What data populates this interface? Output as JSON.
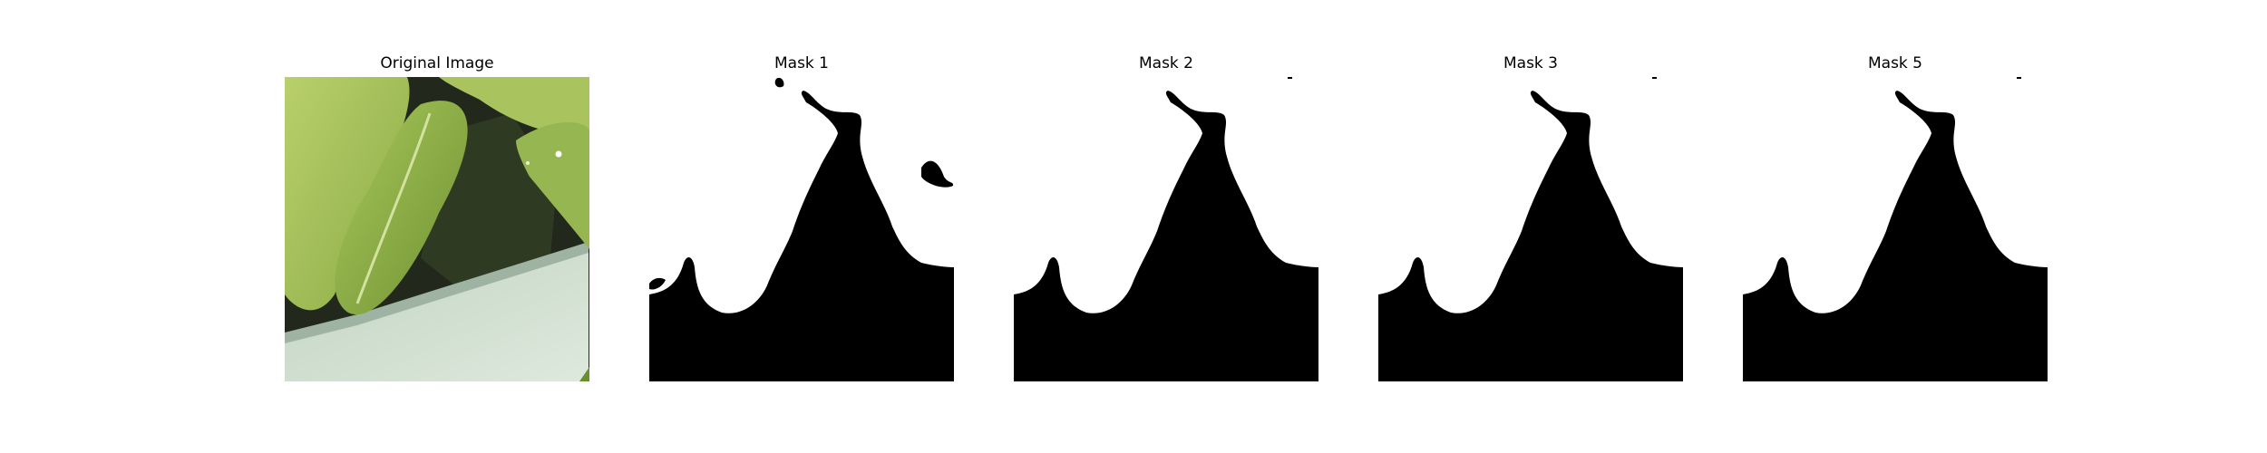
{
  "figure": {
    "panels": [
      {
        "key": "original",
        "title": "Original Image",
        "kind": "photo"
      },
      {
        "key": "mask_1",
        "title": "Mask 1",
        "kind": "mask",
        "variant": "noisy"
      },
      {
        "key": "mask_2",
        "title": "Mask 2",
        "kind": "mask",
        "variant": "clean"
      },
      {
        "key": "mask_3",
        "title": "Mask 3",
        "kind": "mask",
        "variant": "clean"
      },
      {
        "key": "mask_5",
        "title": "Mask 5",
        "kind": "mask",
        "variant": "clean"
      }
    ]
  },
  "colors": {
    "background": "#ffffff",
    "mask_foreground": "#000000",
    "mask_background": "#ffffff",
    "leaf_light": "#b4cc6a",
    "leaf_mid": "#8fb24a",
    "leaf_dark": "#4e6a24",
    "shadow": "#1d211a",
    "pot_light": "#d6e4d4",
    "pot_mid": "#b9cabc"
  }
}
